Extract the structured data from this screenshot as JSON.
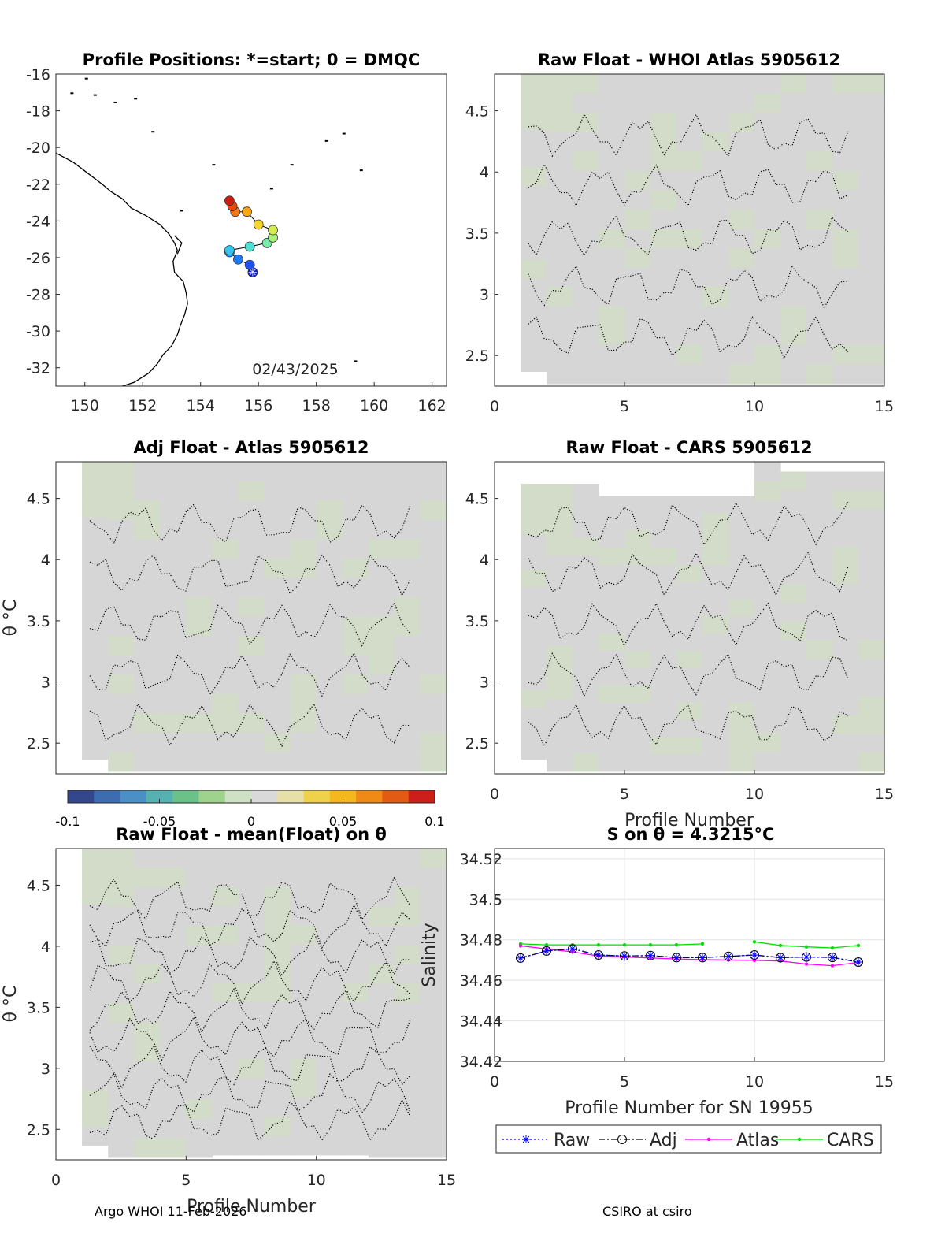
{
  "chart_data": [
    {
      "type": "scatter",
      "title": "Profile Positions: *=start; 0 = DMQC",
      "xlim": [
        149,
        162.5
      ],
      "ylim": [
        -33,
        -16
      ],
      "xticks": [
        "150",
        "152",
        "154",
        "156",
        "158",
        "160",
        "162"
      ],
      "yticks": [
        "-16",
        "-18",
        "-20",
        "-22",
        "-24",
        "-26",
        "-28",
        "-30",
        "-32"
      ],
      "annotation": "02/43/2025",
      "track": [
        {
          "lon": 155.8,
          "lat": -26.8
        },
        {
          "lon": 155.7,
          "lat": -26.4
        },
        {
          "lon": 155.3,
          "lat": -26.1
        },
        {
          "lon": 155.0,
          "lat": -25.7
        },
        {
          "lon": 155.0,
          "lat": -25.6
        },
        {
          "lon": 155.7,
          "lat": -25.4
        },
        {
          "lon": 156.3,
          "lat": -25.2
        },
        {
          "lon": 156.5,
          "lat": -24.9
        },
        {
          "lon": 156.5,
          "lat": -24.5
        },
        {
          "lon": 156.0,
          "lat": -24.2
        },
        {
          "lon": 155.6,
          "lat": -23.5
        },
        {
          "lon": 155.2,
          "lat": -23.5
        },
        {
          "lon": 155.1,
          "lat": -23.2
        },
        {
          "lon": 155.0,
          "lat": -22.9
        }
      ]
    },
    {
      "type": "heatmap",
      "title": "Raw Float - WHOI Atlas  5905612",
      "xlim": [
        0,
        15
      ],
      "ylim": [
        2.25,
        4.8
      ],
      "xticks": [
        "0",
        "5",
        "10",
        "15"
      ],
      "yticks": [
        "2.5",
        "3",
        "3.5",
        "4",
        "4.5"
      ],
      "ylabel": "",
      "xlabel": ""
    },
    {
      "type": "heatmap",
      "title": "Adj Float - Atlas  5905612",
      "xlim": [
        0,
        15
      ],
      "ylim": [
        2.25,
        4.8
      ],
      "xticks": [],
      "yticks": [
        "2.5",
        "3",
        "3.5",
        "4",
        "4.5"
      ],
      "ylabel": "θ °C",
      "xlabel": ""
    },
    {
      "type": "heatmap",
      "title": "Raw Float - CARS  5905612",
      "xlim": [
        0,
        15
      ],
      "ylim": [
        2.25,
        4.8
      ],
      "xticks": [
        "0",
        "5",
        "10",
        "15"
      ],
      "yticks": [
        "2.5",
        "3",
        "3.5",
        "4",
        "4.5"
      ],
      "ylabel": "",
      "xlabel": "Profile Number"
    },
    {
      "type": "heatmap",
      "title": "Raw Float - mean(Float) on θ",
      "xlim": [
        0,
        15
      ],
      "ylim": [
        2.25,
        4.8
      ],
      "xticks": [
        "0",
        "5",
        "10",
        "15"
      ],
      "yticks": [
        "2.5",
        "3",
        "3.5",
        "4",
        "4.5"
      ],
      "ylabel": "θ °C",
      "xlabel": "Profile Number"
    },
    {
      "type": "line",
      "title": "S on θ = 4.3215°C",
      "xlabel": "Profile Number for SN 19955",
      "ylabel": "Salinity",
      "xlim": [
        0,
        15
      ],
      "ylim": [
        34.42,
        34.525
      ],
      "xticks": [
        "0",
        "5",
        "10",
        "15"
      ],
      "yticks": [
        "34.42",
        "34.44",
        "34.46",
        "34.48",
        "34.5",
        "34.52"
      ],
      "grid": true,
      "legend": "bottom",
      "x": [
        1,
        2,
        3,
        4,
        5,
        6,
        7,
        8,
        9,
        10,
        11,
        12,
        13,
        14
      ],
      "series": [
        {
          "name": "Raw",
          "color": "#0000ff",
          "values": [
            34.471,
            34.4745,
            34.4755,
            34.4725,
            34.472,
            34.4722,
            34.4712,
            34.4712,
            34.4718,
            34.4725,
            34.4712,
            34.4715,
            34.4713,
            34.469
          ]
        },
        {
          "name": "Adj",
          "color": "#000000",
          "values": [
            34.471,
            34.4745,
            34.4755,
            34.4725,
            34.472,
            34.4722,
            34.4712,
            34.4712,
            34.4718,
            34.4725,
            34.4712,
            34.4715,
            34.4713,
            34.469
          ]
        },
        {
          "name": "Atlas",
          "color": "#ff00ff",
          "values": [
            34.477,
            34.4755,
            34.474,
            34.472,
            34.4715,
            34.471,
            34.4705,
            34.4702,
            34.47,
            34.4698,
            34.4695,
            34.468,
            34.4672,
            34.4688
          ]
        },
        {
          "name": "CARS",
          "color": "#00dd00",
          "values": [
            34.478,
            34.4775,
            34.4775,
            34.4775,
            34.4775,
            34.4775,
            34.4775,
            34.478,
            null,
            34.479,
            34.4772,
            34.4765,
            34.476,
            34.4772
          ]
        }
      ]
    }
  ],
  "colorbar": {
    "ticks": [
      "-0.1",
      "-0.05",
      "0",
      "0.05",
      "0.1"
    ],
    "colors": [
      "#35478c",
      "#3d6db0",
      "#4a90c6",
      "#56b2b0",
      "#6bc18a",
      "#9fd38d",
      "#cfe1c4",
      "#d9d9d9",
      "#e7dfa8",
      "#f0d24a",
      "#f5b71d",
      "#f08a14",
      "#e35a12",
      "#cc1f1a"
    ]
  },
  "footer": {
    "left": "Argo WHOI 11-Feb-2026",
    "right": "CSIRO at csiro"
  },
  "colors": {
    "field": "#d6d6d6",
    "field_green": "#d3dcc8",
    "contour": "#000000"
  }
}
